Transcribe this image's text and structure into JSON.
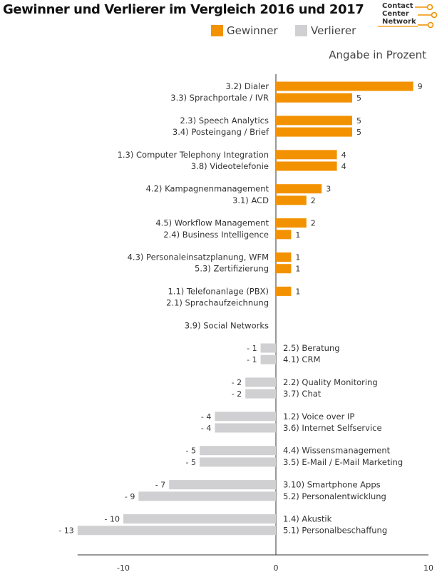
{
  "title": "Gewinner und Verlierer im Vergleich 2016 und 2017",
  "logo": {
    "lines": [
      "Contact",
      "Center",
      "Network"
    ]
  },
  "unit_note": "Angabe in Prozent",
  "legend": [
    {
      "label": "Gewinner",
      "color": "#F39200"
    },
    {
      "label": "Verlierer",
      "color": "#D0D0D2"
    }
  ],
  "chart_data": {
    "type": "bar",
    "orientation": "horizontal",
    "title": "Gewinner und Verlierer im Vergleich 2016 und 2017",
    "xlim": [
      -13,
      10
    ],
    "xticks": [
      {
        "value": -10,
        "label": "-10"
      },
      {
        "value": 0,
        "label": "0"
      },
      {
        "value": 10,
        "label": "10"
      }
    ],
    "series": [
      {
        "name": "Gewinner",
        "color": "#F39200"
      },
      {
        "name": "Verlierer",
        "color": "#D0D0D2"
      }
    ],
    "groups": [
      {
        "items": [
          {
            "label": "3.2) Dialer",
            "value": 9,
            "value_label": "9"
          },
          {
            "label": "3.3) Sprachportale / IVR",
            "value": 5,
            "value_label": "5"
          }
        ]
      },
      {
        "items": [
          {
            "label": "2.3) Speech Analytics",
            "value": 5,
            "value_label": "5"
          },
          {
            "label": "3.4) Posteingang / Brief",
            "value": 5,
            "value_label": "5"
          }
        ]
      },
      {
        "items": [
          {
            "label": "1.3) Computer Telephony Integration",
            "value": 4,
            "value_label": "4"
          },
          {
            "label": "3.8) Videotelefonie",
            "value": 4,
            "value_label": "4"
          }
        ]
      },
      {
        "items": [
          {
            "label": "4.2) Kampagnenmanagement",
            "value": 3,
            "value_label": "3"
          },
          {
            "label": "3.1) ACD",
            "value": 2,
            "value_label": "2"
          }
        ]
      },
      {
        "items": [
          {
            "label": "4.5) Workflow Management",
            "value": 2,
            "value_label": "2"
          },
          {
            "label": "2.4) Business Intelligence",
            "value": 1,
            "value_label": "1"
          }
        ]
      },
      {
        "items": [
          {
            "label": "4.3) Personaleinsatzplanung, WFM",
            "value": 1,
            "value_label": "1"
          },
          {
            "label": "5.3) Zertifizierung",
            "value": 1,
            "value_label": "1"
          }
        ]
      },
      {
        "items": [
          {
            "label": "1.1) Telefonanlage (PBX)",
            "value": 1,
            "value_label": "1"
          },
          {
            "label": "2.1) Sprachaufzeichnung",
            "value": 0,
            "value_label": ""
          }
        ]
      },
      {
        "items": [
          {
            "label": "3.9) Social Networks",
            "value": 0,
            "value_label": ""
          }
        ]
      },
      {
        "items": [
          {
            "label": "2.5) Beratung",
            "value": -1,
            "value_label": "- 1"
          },
          {
            "label": "4.1) CRM",
            "value": -1,
            "value_label": "- 1"
          }
        ]
      },
      {
        "items": [
          {
            "label": "2.2) Quality Monitoring",
            "value": -2,
            "value_label": "- 2"
          },
          {
            "label": "3.7) Chat",
            "value": -2,
            "value_label": "- 2"
          }
        ]
      },
      {
        "items": [
          {
            "label": "1.2) Voice over IP",
            "value": -4,
            "value_label": "- 4"
          },
          {
            "label": "3.6) Internet Selfservice",
            "value": -4,
            "value_label": "- 4"
          }
        ]
      },
      {
        "items": [
          {
            "label": "4.4) Wissensmanagement",
            "value": -5,
            "value_label": "- 5"
          },
          {
            "label": "3.5) E-Mail / E-Mail Marketing",
            "value": -5,
            "value_label": "- 5"
          }
        ]
      },
      {
        "items": [
          {
            "label": "3.10) Smartphone Apps",
            "value": -7,
            "value_label": "- 7"
          },
          {
            "label": "5.2) Personalentwicklung",
            "value": -9,
            "value_label": "- 9"
          }
        ]
      },
      {
        "items": [
          {
            "label": "1.4) Akustik",
            "value": -10,
            "value_label": "- 10"
          },
          {
            "label": "5.1) Personalbeschaffung",
            "value": -13,
            "value_label": "- 13"
          }
        ]
      }
    ]
  }
}
